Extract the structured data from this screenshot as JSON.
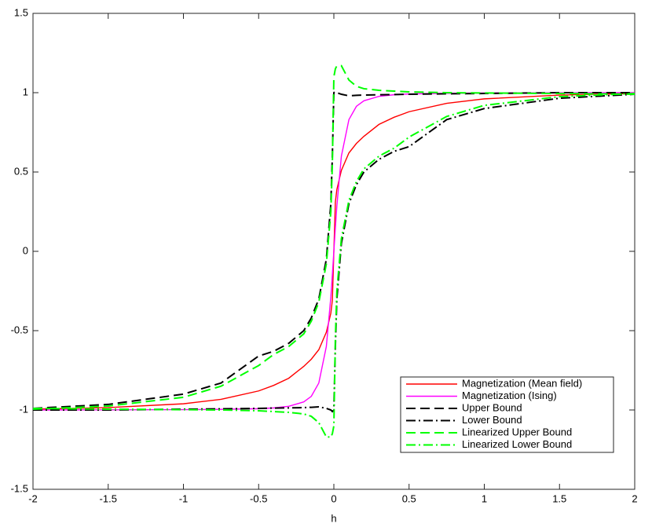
{
  "chart_data": {
    "type": "line",
    "xlabel": "h",
    "x": [
      -2,
      -1.5,
      -1,
      -0.75,
      -0.5,
      -0.4,
      -0.3,
      -0.2,
      -0.15,
      -0.1,
      -0.05,
      -0.02,
      -0.01,
      0,
      0.01,
      0.02,
      0.05,
      0.1,
      0.15,
      0.2,
      0.3,
      0.4,
      0.5,
      0.75,
      1,
      1.5,
      2
    ],
    "series": [
      {
        "name": "Magnetization (Mean field)",
        "color": "#ff0000",
        "dash": "solid",
        "values": [
          -0.995,
          -0.985,
          -0.961,
          -0.933,
          -0.88,
          -0.845,
          -0.8,
          -0.725,
          -0.68,
          -0.62,
          -0.51,
          -0.39,
          -0.31,
          0,
          0.31,
          0.39,
          0.51,
          0.62,
          0.68,
          0.725,
          0.8,
          0.845,
          0.88,
          0.933,
          0.961,
          0.985,
          0.995
        ]
      },
      {
        "name": "Magnetization (Ising)",
        "color": "#ff00ff",
        "dash": "solid",
        "values": [
          -1,
          -0.999,
          -0.998,
          -0.996,
          -0.992,
          -0.987,
          -0.977,
          -0.949,
          -0.914,
          -0.83,
          -0.6,
          -0.287,
          -0.148,
          0,
          0.148,
          0.287,
          0.6,
          0.83,
          0.914,
          0.949,
          0.977,
          0.987,
          0.992,
          0.996,
          0.998,
          0.999,
          1
        ]
      },
      {
        "name": "Upper Bound",
        "color": "#000000",
        "dash": "dashed",
        "values": [
          -0.99,
          -0.965,
          -0.9,
          -0.83,
          -0.66,
          -0.63,
          -0.58,
          -0.5,
          -0.42,
          -0.3,
          -0.05,
          0.3,
          0.6,
          1,
          1.01,
          1,
          0.99,
          0.98,
          0.983,
          0.985,
          0.987,
          0.988,
          0.99,
          0.993,
          0.995,
          1,
          1
        ]
      },
      {
        "name": "Lower Bound",
        "color": "#000000",
        "dash": "dashdot",
        "values": [
          -1,
          -1,
          -0.995,
          -0.993,
          -0.99,
          -0.988,
          -0.987,
          -0.985,
          -0.983,
          -0.98,
          -0.99,
          -1,
          -1.01,
          -1,
          -0.6,
          -0.3,
          0.05,
          0.3,
          0.42,
          0.5,
          0.58,
          0.63,
          0.66,
          0.83,
          0.9,
          0.965,
          0.99
        ]
      },
      {
        "name": "Linearized Upper Bound",
        "color": "#00ff00",
        "dash": "dashed",
        "values": [
          -0.995,
          -0.975,
          -0.92,
          -0.85,
          -0.72,
          -0.65,
          -0.6,
          -0.52,
          -0.44,
          -0.32,
          -0.08,
          0.25,
          0.55,
          1.1,
          1.15,
          1.17,
          1.17,
          1.08,
          1.04,
          1.025,
          1.015,
          1.01,
          1.005,
          1.0,
          0.998,
          0.995,
          0.99
        ]
      },
      {
        "name": "Linearized Lower Bound",
        "color": "#00ff00",
        "dash": "dashdot",
        "values": [
          -0.99,
          -0.995,
          -0.998,
          -1.0,
          -1.005,
          -1.01,
          -1.015,
          -1.025,
          -1.04,
          -1.08,
          -1.17,
          -1.17,
          -1.15,
          -1.1,
          -0.55,
          -0.25,
          0.08,
          0.32,
          0.44,
          0.52,
          0.6,
          0.65,
          0.72,
          0.85,
          0.92,
          0.975,
          0.995
        ]
      }
    ],
    "xlim": [
      -2,
      2
    ],
    "xticks": [
      -2,
      -1.5,
      -1,
      -0.5,
      0,
      0.5,
      1,
      1.5,
      2
    ],
    "ylim": [
      -1.5,
      1.5
    ],
    "yticks": [
      -1.5,
      -1,
      -0.5,
      0,
      0.5,
      1,
      1.5
    ],
    "legend": "lower right"
  }
}
